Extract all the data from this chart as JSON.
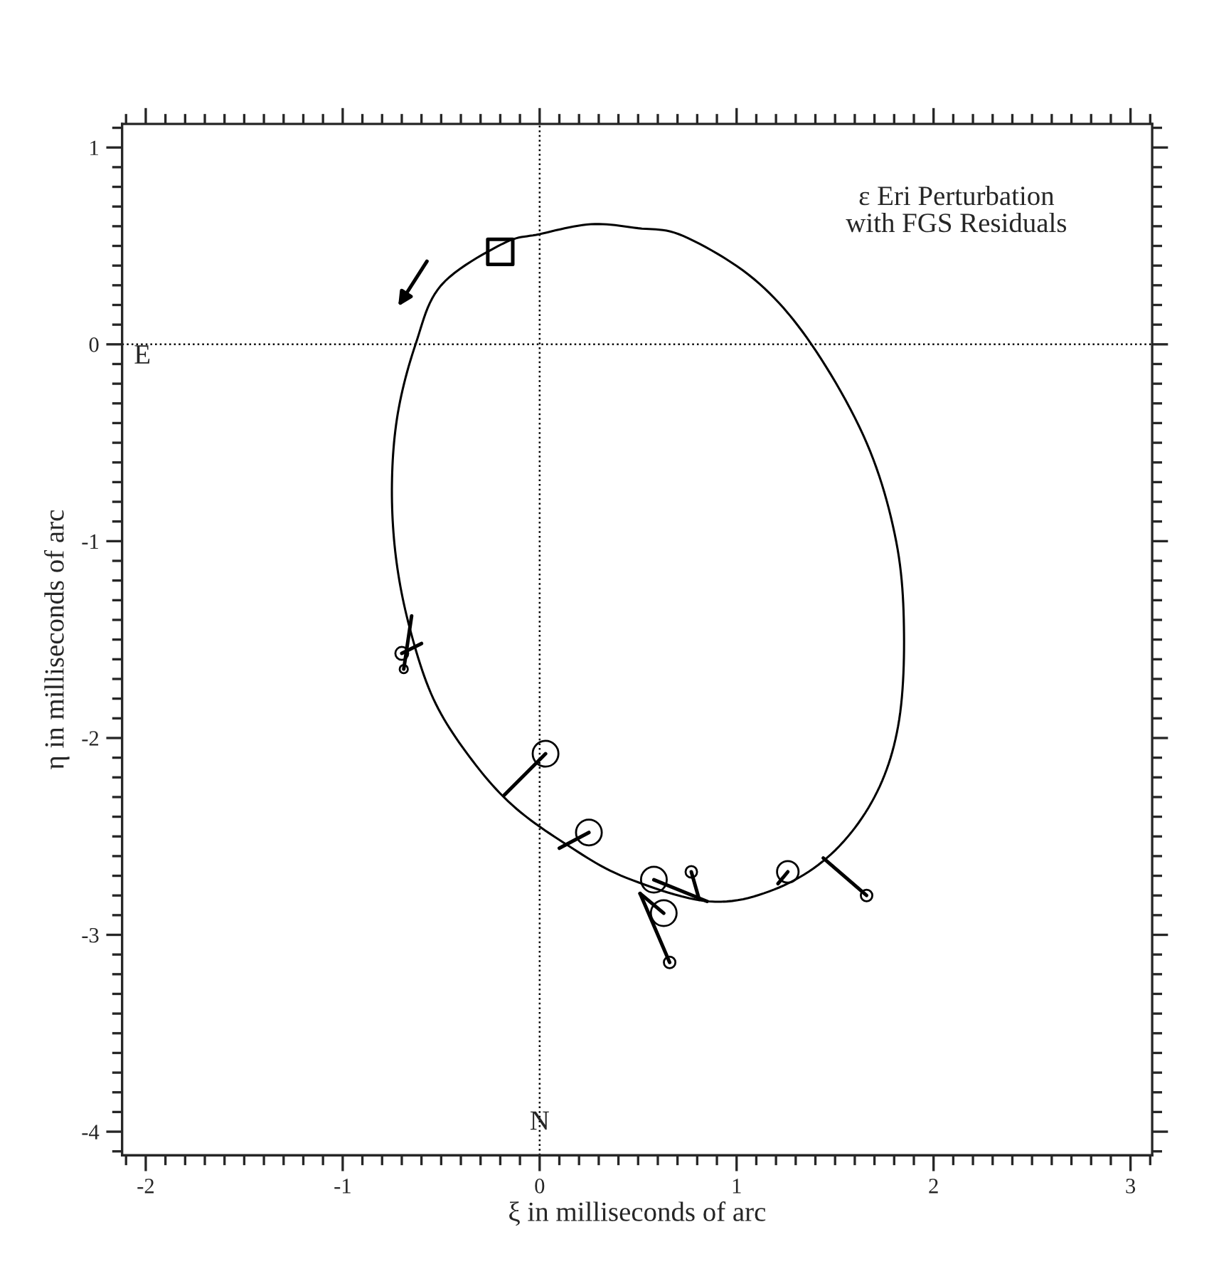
{
  "chart_data": {
    "type": "line",
    "title": "ε Eri Perturbation\nwith FGS Residuals",
    "xlabel": "ξ in milliseconds of arc",
    "ylabel": "η in milliseconds of arc",
    "xlim": [
      -2.12,
      3.11
    ],
    "ylim": [
      -4.12,
      1.12
    ],
    "xticks": [
      -2,
      -1,
      0,
      1,
      2,
      3
    ],
    "yticks": [
      -4,
      -3,
      -2,
      -1,
      0,
      1
    ],
    "grid": false,
    "ref_lines": [
      {
        "axis": "x",
        "value": 0,
        "label": "N",
        "line_style": "dotted",
        "color": "#000000"
      },
      {
        "axis": "y",
        "value": 0,
        "label": "E",
        "line_style": "dotted",
        "color": "#000000"
      }
    ],
    "series": [
      {
        "type": "scatter",
        "color": "#000000",
        "marker": "square",
        "x": [
          -0.2
        ],
        "values": [
          0.47
        ]
      },
      {
        "type": "bubble",
        "color": "#000000",
        "marker": "circle",
        "x": [
          0.03,
          0.25,
          0.58,
          0.63,
          1.26,
          -0.7,
          -0.69,
          0.77,
          0.66,
          1.66
        ],
        "values": [
          -2.08,
          -2.48,
          -2.72,
          -2.89,
          -2.68,
          -1.57,
          -1.65,
          -2.68,
          -3.14,
          -2.8
        ],
        "sizes": [
          1,
          1,
          1,
          1,
          0.7,
          0.25,
          0.1,
          0.2,
          0.2,
          0.2
        ]
      },
      {
        "type": "line",
        "color": "#000000",
        "marker": "none",
        "line_style": "solid",
        "x": [
          -0.18,
          0.03
        ],
        "values": [
          -2.29,
          -2.08
        ]
      },
      {
        "type": "line",
        "color": "#000000",
        "marker": "none",
        "line_style": "solid",
        "x": [
          0.1,
          0.25
        ],
        "values": [
          -2.56,
          -2.48
        ]
      },
      {
        "type": "line",
        "color": "#000000",
        "marker": "none",
        "line_style": "solid",
        "x": [
          0.58,
          0.85
        ],
        "values": [
          -2.72,
          -2.83
        ]
      },
      {
        "type": "line",
        "color": "#000000",
        "marker": "none",
        "line_style": "solid",
        "x": [
          0.77,
          0.81
        ],
        "values": [
          -2.68,
          -2.82
        ]
      },
      {
        "type": "line",
        "color": "#000000",
        "marker": "none",
        "line_style": "solid",
        "x": [
          0.51,
          0.63
        ],
        "values": [
          -2.79,
          -2.89
        ]
      },
      {
        "type": "line",
        "color": "#000000",
        "marker": "none",
        "line_style": "solid",
        "x": [
          0.51,
          0.66
        ],
        "values": [
          -2.79,
          -3.14
        ]
      },
      {
        "type": "line",
        "color": "#000000",
        "marker": "none",
        "line_style": "solid",
        "x": [
          1.21,
          1.26
        ],
        "values": [
          -2.74,
          -2.68
        ]
      },
      {
        "type": "line",
        "color": "#000000",
        "marker": "none",
        "line_style": "solid",
        "x": [
          1.44,
          1.66
        ],
        "values": [
          -2.61,
          -2.8
        ]
      },
      {
        "type": "line",
        "color": "#000000",
        "marker": "none",
        "line_style": "solid",
        "x": [
          -0.7,
          -0.6
        ],
        "values": [
          -1.57,
          -1.52
        ]
      },
      {
        "type": "line",
        "color": "#000000",
        "marker": "none",
        "line_style": "solid",
        "x": [
          -0.69,
          -0.65
        ],
        "values": [
          -1.65,
          -1.38
        ]
      }
    ]
  }
}
